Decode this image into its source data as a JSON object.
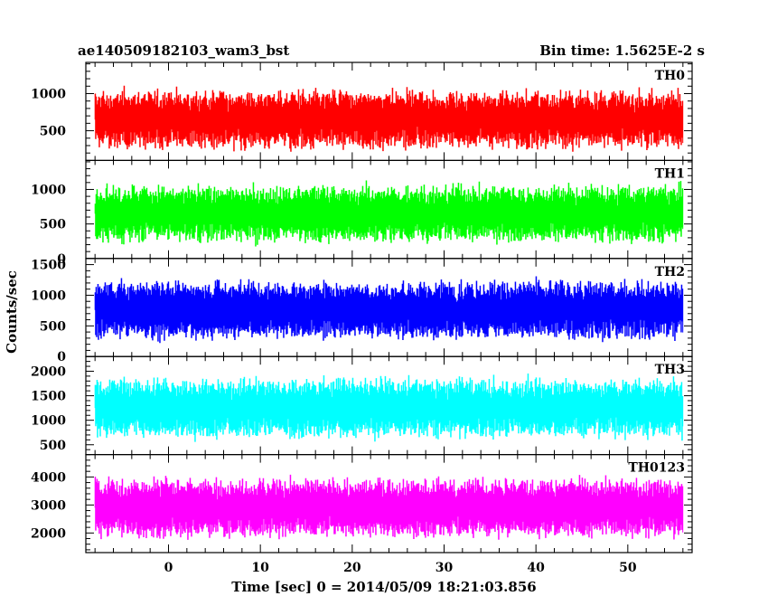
{
  "header": {
    "title": "ae140509182103_wam3_bst",
    "bin_time": "Bin time: 1.5625E-2 s"
  },
  "chart_data": {
    "type": "line",
    "title": "ae140509182103_wam3_bst",
    "xlabel": "Time [sec] 0 = 2014/05/09 18:21:03.856",
    "ylabel": "Counts/sec",
    "xlim": [
      -9,
      57
    ],
    "x_ticks": [
      0,
      10,
      20,
      30,
      40,
      50
    ],
    "x_range": [
      -8,
      56
    ],
    "grid": false,
    "panels": [
      {
        "name": "TH0",
        "color": "#ff0000",
        "ylim": [
          100,
          1420
        ],
        "y_ticks": [
          500,
          1000
        ],
        "mean": 650,
        "spread": 360
      },
      {
        "name": "TH1",
        "color": "#00ff00",
        "ylim": [
          0,
          1420
        ],
        "y_ticks": [
          0,
          500,
          1000
        ],
        "mean": 650,
        "spread": 380
      },
      {
        "name": "TH2",
        "color": "#0000ff",
        "ylim": [
          0,
          1600
        ],
        "y_ticks": [
          0,
          500,
          1000,
          1500
        ],
        "mean": 760,
        "spread": 440
      },
      {
        "name": "TH3",
        "color": "#00ffff",
        "ylim": [
          300,
          2300
        ],
        "y_ticks": [
          500,
          1000,
          1500,
          2000
        ],
        "mean": 1250,
        "spread": 560
      },
      {
        "name": "TH0123",
        "color": "#ff00ff",
        "ylim": [
          1300,
          4800
        ],
        "y_ticks": [
          2000,
          3000,
          4000
        ],
        "mean": 2900,
        "spread": 980
      }
    ]
  }
}
